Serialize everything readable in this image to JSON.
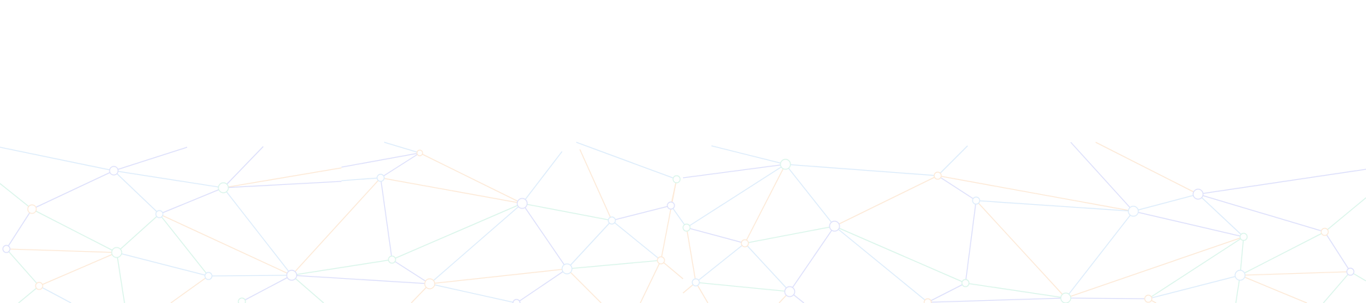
{
  "background": {
    "type": "low-poly network pattern",
    "colors": {
      "page": "#ffffff",
      "blue": "#dcdffb",
      "green": "#d9f5ea",
      "orange": "#fde9d6",
      "sky": "#dcecfb"
    }
  }
}
